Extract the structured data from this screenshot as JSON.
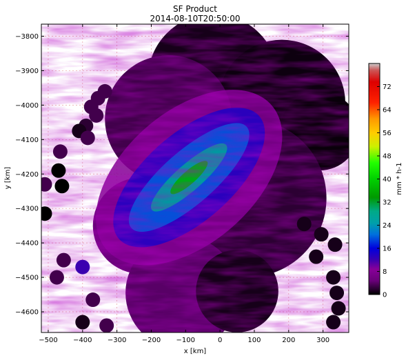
{
  "chart_data": {
    "type": "heatmap",
    "title": "SF Product",
    "subtitle": "2014-08-10T20:50:00",
    "xlabel": "x [km]",
    "ylabel": "y [km]",
    "xlim": [
      -520,
      375
    ],
    "ylim": [
      -4660,
      -3765
    ],
    "xticks": [
      -500,
      -400,
      -300,
      -200,
      -100,
      0,
      100,
      200,
      300
    ],
    "yticks": [
      -3800,
      -3900,
      -4000,
      -4100,
      -4200,
      -4300,
      -4400,
      -4500,
      -4600
    ],
    "grid": true,
    "colorbar": {
      "label": "mm * h-1",
      "min": 0,
      "max": 80,
      "ticks": [
        0,
        8,
        16,
        24,
        32,
        40,
        48,
        56,
        64,
        72
      ],
      "colormap": "nipy_spectral"
    },
    "coverage_disks_km": [
      {
        "x": -20,
        "y": -3925,
        "r": 190,
        "level": 1
      },
      {
        "x": 180,
        "y": -3995,
        "r": 185,
        "level": 0.6
      },
      {
        "x": 290,
        "y": -4075,
        "r": 115,
        "level": 0.4
      },
      {
        "x": -150,
        "y": -4040,
        "r": 185,
        "level": 3
      },
      {
        "x": -230,
        "y": -4350,
        "r": 140,
        "level": 5
      },
      {
        "x": 80,
        "y": -4270,
        "r": 230,
        "level": 2
      },
      {
        "x": -110,
        "y": -4545,
        "r": 165,
        "level": 4
      },
      {
        "x": 50,
        "y": -4540,
        "r": 120,
        "level": 1
      }
    ],
    "rain_band": {
      "x0": -330,
      "y0": -4420,
      "x1": 150,
      "y1": -4000,
      "peak_mm_h": 36
    },
    "isolated_echoes_km": [
      {
        "x": -510,
        "y": -4230,
        "v": 3
      },
      {
        "x": -465,
        "y": -4135,
        "v": 3
      },
      {
        "x": -470,
        "y": -4190,
        "v": 0
      },
      {
        "x": -460,
        "y": -4235,
        "v": 0
      },
      {
        "x": -510,
        "y": -4315,
        "v": 0
      },
      {
        "x": -455,
        "y": -4450,
        "v": 3
      },
      {
        "x": -475,
        "y": -4500,
        "v": 3
      },
      {
        "x": -400,
        "y": -4470,
        "v": 12
      },
      {
        "x": -370,
        "y": -4565,
        "v": 3
      },
      {
        "x": -400,
        "y": -4630,
        "v": 1
      },
      {
        "x": -330,
        "y": -4640,
        "v": 3
      },
      {
        "x": -360,
        "y": -4030,
        "v": 3
      },
      {
        "x": -375,
        "y": -4005,
        "v": 3
      },
      {
        "x": -390,
        "y": -4060,
        "v": 2
      },
      {
        "x": -410,
        "y": -4075,
        "v": 1
      },
      {
        "x": -385,
        "y": -4095,
        "v": 3
      },
      {
        "x": -355,
        "y": -3980,
        "v": 3
      },
      {
        "x": -335,
        "y": -3960,
        "v": 3
      },
      {
        "x": 245,
        "y": -4345,
        "v": 1
      },
      {
        "x": 295,
        "y": -4375,
        "v": 1
      },
      {
        "x": 335,
        "y": -4405,
        "v": 1
      },
      {
        "x": 280,
        "y": -4440,
        "v": 1
      },
      {
        "x": 330,
        "y": -4500,
        "v": 1
      },
      {
        "x": 340,
        "y": -4545,
        "v": 1
      },
      {
        "x": 345,
        "y": -4590,
        "v": 1
      },
      {
        "x": 330,
        "y": -4630,
        "v": 1
      }
    ]
  }
}
